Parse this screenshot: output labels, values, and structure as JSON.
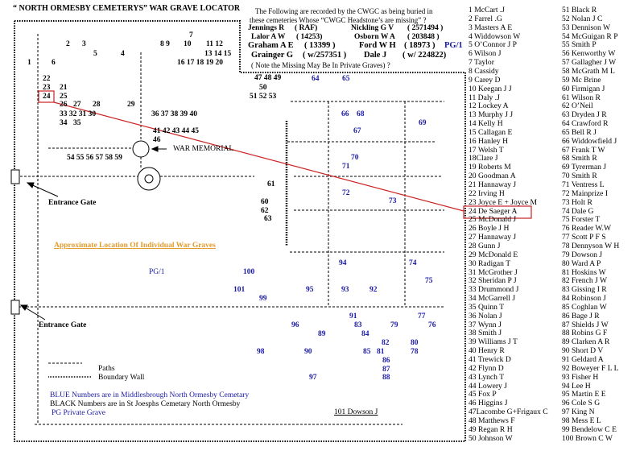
{
  "title": "“ NORTH ORMESBY  CEMETERYS” WAR GRAVE LOCATOR",
  "header": {
    "line1": "The Following are recorded by the CWGC  as being buried in",
    "line2": "these cemeteries  Whose  “CWGC Headstone’s  are missing” ?",
    "missing": [
      {
        "name": "Jennings R",
        "ref": "( RAF)"
      },
      {
        "name": "Nickling G V",
        "ref": "( 2571494 )"
      },
      {
        "name": "Lalor A W",
        "ref": "( 14253)"
      },
      {
        "name": "Osborn W A",
        "ref": "( 203848 )"
      },
      {
        "name": "Graham A  E",
        "ref": "( 13399 )"
      },
      {
        "name": "Ford  W H",
        "ref": "( 18973 )"
      },
      {
        "name": "Grainger G",
        "ref": "( w/257351 )"
      },
      {
        "name": "Dale J",
        "ref": "( w/ 224822)"
      }
    ],
    "ford_pg": "PG/1",
    "note": "( Note the Missing May  Be In Private Graves) ?"
  },
  "map": {
    "black": [
      "7",
      "2",
      "3",
      "8  9",
      "10",
      "11  12",
      "5",
      "4",
      "13 14 15",
      "1",
      "6",
      "16 17 18 19 20",
      "22",
      "23",
      "21",
      "24",
      "25",
      "26",
      "27",
      "28",
      "29",
      "33 32 31 30",
      "36 37 38 39 40",
      "34",
      "35",
      "41 42 43 44 45",
      "46",
      "54 55 56 57 58 59",
      "47  48 49",
      "50",
      "51 52 53",
      "61",
      "60",
      "62",
      "63"
    ],
    "blue": [
      "64",
      "65",
      "66",
      "68",
      "69",
      "67",
      "70",
      "71",
      "72",
      "73",
      "94",
      "74",
      "75",
      "100",
      "101",
      "95",
      "93",
      "92",
      "99",
      "91",
      "77",
      "96",
      "83",
      "79",
      "76",
      "89",
      "84",
      "82",
      "80",
      "98",
      "90",
      "85",
      "81",
      "78",
      "86",
      "87",
      "88",
      "97"
    ],
    "pg_label": "PG/1",
    "war_memorial": "WAR  MEMORIAL",
    "entrance_gate_1": "Entrance Gate",
    "entrance_gate_2": "Entrance Gate",
    "approx_heading": "Approximate Location Of Individual War Graves"
  },
  "legend": {
    "paths": "Paths",
    "boundary_wall": "Boundary Wall",
    "blue_note": "BLUE   Numbers are in   Middlesbrough  North Ormesby Cemetary",
    "black_note": "BLACK  Numbers   are in  St Joesphs Cemetary  North Ormesby",
    "pg_note": "PG    Private Grave",
    "dowson": "101  Dowson  J"
  },
  "names_col1": [
    "1 McCart .J",
    "2 Farrel .G",
    "3 Masters A E",
    "4 Widdowson W",
    "5 O’Connor J P",
    "6 Wilson  J",
    "7 Taylor",
    "8 Cassidy",
    "9 Carey D",
    "10 Keegan J J",
    "11 Daly .J",
    "12 Lockey A",
    "13 Murphy J J",
    "14 Kelly H",
    "15 Callagan E",
    "16 Hanley H",
    "17 Welsh T",
    "18Clare J",
    "19 Roberts M",
    "20 Goodman A",
    "21 Hannaway J",
    "22 Irving H",
    "23 Joyce E + Joyce M",
    "24 De Saeger  A",
    "25 McDonald J",
    "26 Boyle J H",
    "27 Hannaway J",
    "28 Gunn J",
    "29 McDonald E",
    "30 Radigan T",
    "31 McGrother J",
    "32 Sheridan P J",
    "33 Drummond J",
    "34 McGarrell J",
    "35 Quinn T",
    "36 Nolan J",
    "37 Wynn J",
    "38 Smith J",
    "39 Williams J T",
    "40 Henry R",
    "41 Trewick D",
    "42 Flynn D",
    "43 Lynch T",
    "44 Lowery J",
    "45 Fox P",
    "46 Higgins J",
    "47Lacombe G+Frigaux C",
    "48 Matthews F",
    "49 Regan R H",
    "50 Johnson W"
  ],
  "names_col2": [
    "51 Black R",
    "52 Nolan J C",
    "53 Dennison W",
    "54 McGuigan  R P",
    " 55 Smith P",
    " 56 Kenworthy W",
    "57 Gallagher  J W",
    "58 McGrath M L",
    " 59 Mc Brine",
    "60 Firmigan J",
    "61 Wilson R",
    "62 O’Neil",
    "63 Dryden J R",
    "64 Crawford R",
    "65 Bell R J",
    "66 Widdowfield J",
    "67 Frank T W",
    "68 Smith R",
    "69 Tyrerman J",
    "70 Smith R",
    " 71 Ventress L",
    " 72 Mainprize I",
    " 73 Holt R",
    " 74 Dale G",
    " 75 Forster T",
    "76 Reader W.W",
    "77 Scott P F S",
    "78 Dennyson W H",
    "79 Dowson J",
    "80 Ward A P",
    "81 Hoskins W",
    "82 French J W",
    "83 Gissing I R",
    "84 Robinson J",
    "85 Coghlan W",
    "86 Bage J R",
    "87 Shields J W",
    "88 Robins G F",
    "89 Clarken A R",
    "90 Short D V",
    "91 Geldard A",
    "92 Boweyer F L L",
    "93 Fisher H",
    "94 Lee H",
    "95 Martin E E",
    "96 Cole S G",
    "97 King N",
    "98 Mess E L",
    "99    Bendelow C E",
    "100 Brown C W"
  ],
  "colors": {
    "blue": "#1a1aa6",
    "highlight": "#cc2222",
    "heading": "#e39b2b"
  }
}
